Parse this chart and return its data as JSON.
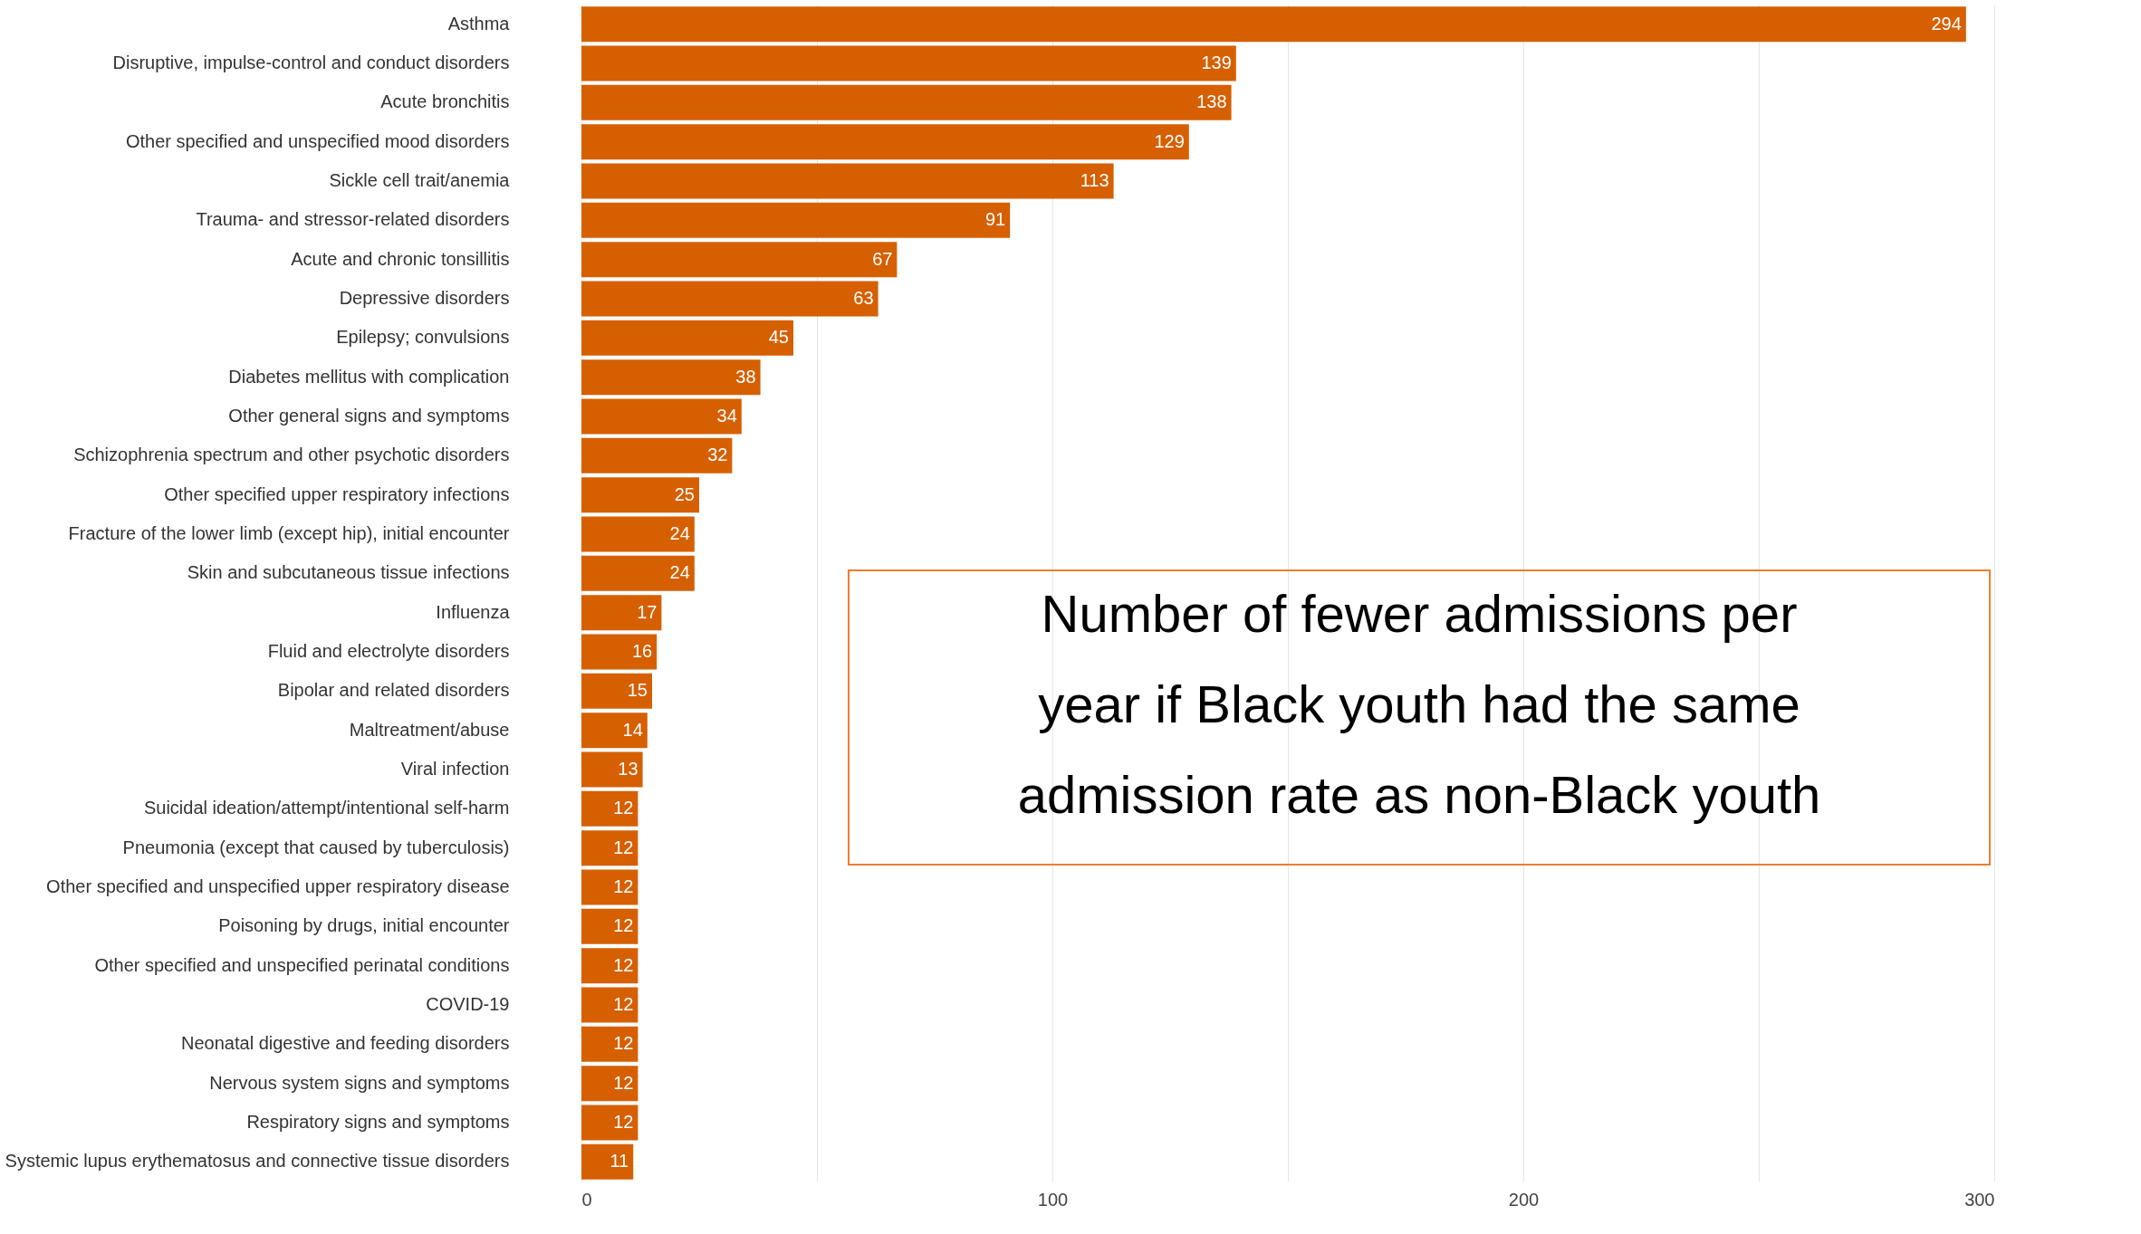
{
  "chart_data": {
    "type": "bar",
    "orientation": "horizontal",
    "data_labels": true,
    "categories": [
      "Asthma",
      "Disruptive, impulse-control and conduct disorders",
      "Acute bronchitis",
      "Other specified and unspecified mood disorders",
      "Sickle cell trait/anemia",
      "Trauma- and stressor-related disorders",
      "Acute and chronic tonsillitis",
      "Depressive disorders",
      "Epilepsy; convulsions",
      "Diabetes mellitus with complication",
      "Other general signs and symptoms",
      "Schizophrenia spectrum and other psychotic disorders",
      "Other specified upper respiratory infections",
      "Fracture of the lower limb (except hip), initial encounter",
      "Skin and subcutaneous tissue infections",
      "Influenza",
      "Fluid and electrolyte disorders",
      "Bipolar and related disorders",
      "Maltreatment/abuse",
      "Viral infection",
      "Suicidal ideation/attempt/intentional self-harm",
      "Pneumonia (except that caused by tuberculosis)",
      "Other specified and unspecified upper respiratory disease",
      "Poisoning by drugs, initial encounter",
      "Other specified and unspecified perinatal conditions",
      "COVID-19",
      "Neonatal digestive and feeding disorders",
      "Nervous system signs and symptoms",
      "Respiratory signs and symptoms",
      "Systemic lupus erythematosus and connective tissue disorders"
    ],
    "values": [
      294,
      139,
      138,
      129,
      113,
      91,
      67,
      63,
      45,
      38,
      34,
      32,
      25,
      24,
      24,
      17,
      16,
      15,
      14,
      13,
      12,
      12,
      12,
      12,
      12,
      12,
      12,
      12,
      12,
      11
    ],
    "color": "#d65f00",
    "xlim": [
      0,
      300
    ],
    "xticks": [
      0,
      {
        "value": 50,
        "label": null
      },
      100,
      {
        "value": 150,
        "label": null
      },
      200,
      {
        "value": 250,
        "label": null
      },
      300
    ],
    "grid": "x",
    "annotations": [
      "Number of fewer admissions per\nyear if Black youth had the same\nadmission rate as non-Black youth"
    ]
  }
}
